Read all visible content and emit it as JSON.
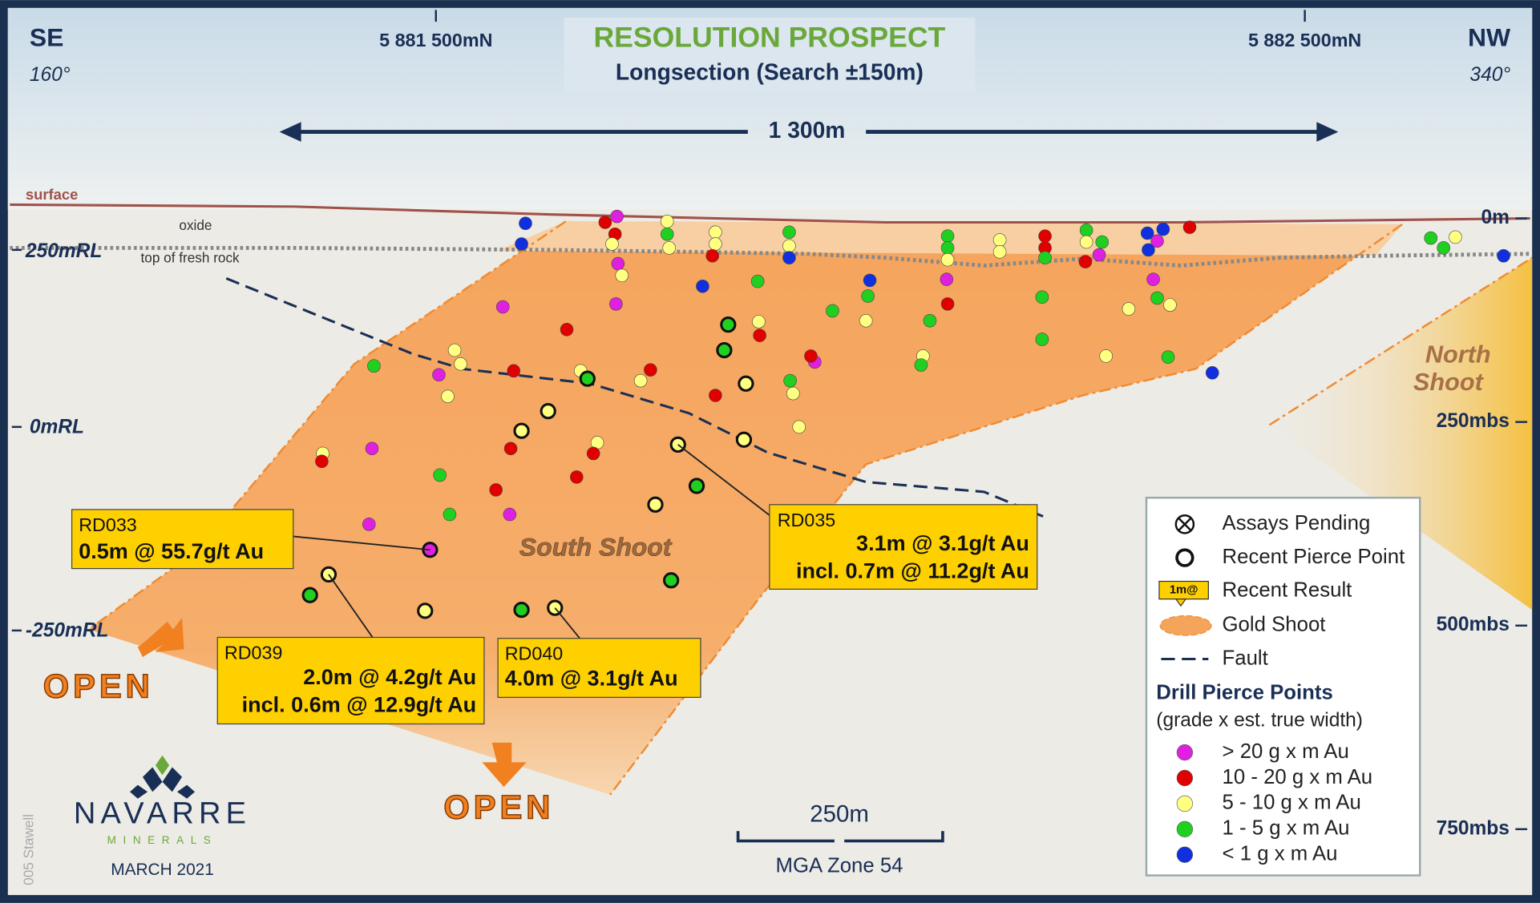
{
  "header": {
    "title": "RESOLUTION PROSPECT",
    "subtitle": "Longsection (Search ±150m)"
  },
  "orientation": {
    "left": {
      "direction": "SE",
      "bearing": "160°"
    },
    "right": {
      "direction": "NW",
      "bearing": "340°"
    }
  },
  "northings": [
    "5 881 500mN",
    "5 882 500mN"
  ],
  "span": "1 300m",
  "rl_labels": [
    "250mRL",
    "0mRL",
    "-250mRL"
  ],
  "depth_labels": [
    "0m",
    "250mbs",
    "500mbs",
    "750mbs"
  ],
  "features": {
    "surface": "surface",
    "oxide": "oxide",
    "fresh_rock": "top of fresh rock",
    "south_shoot": "South Shoot",
    "north_shoot": [
      "North",
      "Shoot"
    ],
    "open": [
      "OPEN",
      "OPEN"
    ]
  },
  "callouts": [
    {
      "hole": "RD033",
      "lines": [
        "0.5m @ 55.7g/t Au"
      ]
    },
    {
      "hole": "RD035",
      "lines": [
        "3.1m @  3.1g/t Au",
        "incl. 0.7m @ 11.2g/t Au"
      ]
    },
    {
      "hole": "RD039",
      "lines": [
        "2.0m @  4.2g/t Au",
        "incl. 0.6m @ 12.9g/t Au"
      ]
    },
    {
      "hole": "RD040",
      "lines": [
        "4.0m @ 3.1g/t Au"
      ]
    }
  ],
  "legend": {
    "items": [
      "Assays Pending",
      "Recent Pierce Point",
      "Recent Result",
      "Gold Shoot",
      "Fault"
    ],
    "result_icon": "1m@",
    "heading": "Drill Pierce Points",
    "subheading": "(grade x est. true width)",
    "grades": [
      "> 20 g x m Au",
      "10 - 20 g x m Au",
      "5 - 10 g x m Au",
      "1 - 5 g x m Au",
      "< 1 g x m Au"
    ]
  },
  "scale": {
    "label": "250m",
    "zone": "MGA Zone 54"
  },
  "logo": {
    "name": "NAVARRE",
    "sub": "MINERALS",
    "date": "MARCH 2021"
  },
  "side_note": "005 Stawell"
}
